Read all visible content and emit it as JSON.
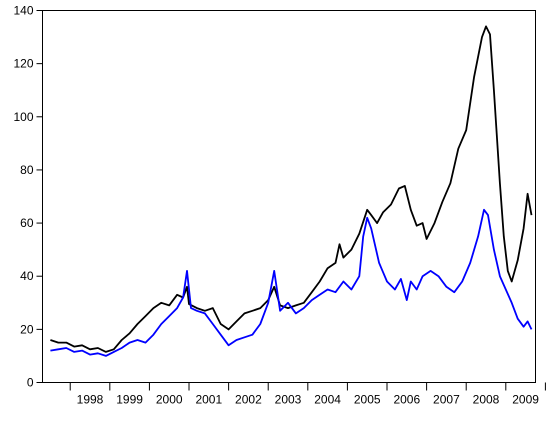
{
  "chart_data": {
    "type": "line",
    "title": "",
    "xlabel": "",
    "ylabel": "",
    "ylim": [
      0,
      140
    ],
    "xlim": [
      1997.3,
      2009.75
    ],
    "y_ticks": [
      "0",
      "20",
      "40",
      "60",
      "80",
      "100",
      "120",
      "140"
    ],
    "x_tick_labels": [
      "1998",
      "1999",
      "2000",
      "2001",
      "2002",
      "2003",
      "2004",
      "2005",
      "2006",
      "2007",
      "2008",
      "2009"
    ],
    "grid": false,
    "legend": "none",
    "series": [
      {
        "color": "#000000",
        "points": [
          [
            1997.5,
            16
          ],
          [
            1997.7,
            15
          ],
          [
            1997.9,
            15
          ],
          [
            1998.1,
            13.5
          ],
          [
            1998.3,
            14
          ],
          [
            1998.5,
            12.5
          ],
          [
            1998.7,
            13
          ],
          [
            1998.9,
            11.5
          ],
          [
            1999.1,
            12.5
          ],
          [
            1999.3,
            16
          ],
          [
            1999.5,
            18.5
          ],
          [
            1999.7,
            22
          ],
          [
            1999.9,
            25
          ],
          [
            2000.1,
            28
          ],
          [
            2000.3,
            30
          ],
          [
            2000.5,
            29
          ],
          [
            2000.7,
            33
          ],
          [
            2000.85,
            32
          ],
          [
            2000.95,
            36
          ],
          [
            2001.0,
            29.5
          ],
          [
            2001.2,
            28
          ],
          [
            2001.4,
            27
          ],
          [
            2001.6,
            28
          ],
          [
            2001.8,
            22
          ],
          [
            2002.0,
            20
          ],
          [
            2002.2,
            23
          ],
          [
            2002.4,
            26
          ],
          [
            2002.6,
            27
          ],
          [
            2002.8,
            28
          ],
          [
            2003.0,
            31
          ],
          [
            2003.15,
            36
          ],
          [
            2003.3,
            29
          ],
          [
            2003.5,
            28
          ],
          [
            2003.7,
            29
          ],
          [
            2003.9,
            30
          ],
          [
            2004.1,
            34
          ],
          [
            2004.3,
            38
          ],
          [
            2004.5,
            43
          ],
          [
            2004.7,
            45
          ],
          [
            2004.8,
            52
          ],
          [
            2004.9,
            47
          ],
          [
            2005.1,
            50
          ],
          [
            2005.3,
            56
          ],
          [
            2005.5,
            65
          ],
          [
            2005.6,
            63
          ],
          [
            2005.75,
            60
          ],
          [
            2005.9,
            64
          ],
          [
            2006.1,
            67
          ],
          [
            2006.3,
            73
          ],
          [
            2006.45,
            74
          ],
          [
            2006.6,
            65
          ],
          [
            2006.75,
            59
          ],
          [
            2006.9,
            60
          ],
          [
            2007.0,
            54
          ],
          [
            2007.2,
            60
          ],
          [
            2007.4,
            68
          ],
          [
            2007.6,
            75
          ],
          [
            2007.8,
            88
          ],
          [
            2008.0,
            95
          ],
          [
            2008.2,
            115
          ],
          [
            2008.4,
            130
          ],
          [
            2008.5,
            134
          ],
          [
            2008.6,
            131
          ],
          [
            2008.7,
            110
          ],
          [
            2008.85,
            75
          ],
          [
            2008.95,
            55
          ],
          [
            2009.05,
            42
          ],
          [
            2009.15,
            38
          ],
          [
            2009.3,
            46
          ],
          [
            2009.45,
            58
          ],
          [
            2009.55,
            71
          ],
          [
            2009.65,
            63
          ]
        ]
      },
      {
        "color": "#0000ff",
        "points": [
          [
            1997.5,
            12
          ],
          [
            1997.7,
            12.5
          ],
          [
            1997.9,
            13
          ],
          [
            1998.1,
            11.5
          ],
          [
            1998.3,
            12
          ],
          [
            1998.5,
            10.5
          ],
          [
            1998.7,
            11
          ],
          [
            1998.9,
            10
          ],
          [
            1999.1,
            11.5
          ],
          [
            1999.3,
            13
          ],
          [
            1999.5,
            15
          ],
          [
            1999.7,
            16
          ],
          [
            1999.9,
            15
          ],
          [
            2000.1,
            18
          ],
          [
            2000.3,
            22
          ],
          [
            2000.5,
            25
          ],
          [
            2000.7,
            28
          ],
          [
            2000.85,
            32
          ],
          [
            2000.95,
            42
          ],
          [
            2001.05,
            28
          ],
          [
            2001.2,
            27
          ],
          [
            2001.4,
            26
          ],
          [
            2001.6,
            22
          ],
          [
            2001.8,
            18
          ],
          [
            2002.0,
            14
          ],
          [
            2002.2,
            16
          ],
          [
            2002.4,
            17
          ],
          [
            2002.6,
            18
          ],
          [
            2002.8,
            22
          ],
          [
            2003.0,
            30
          ],
          [
            2003.15,
            42
          ],
          [
            2003.3,
            27
          ],
          [
            2003.5,
            30
          ],
          [
            2003.7,
            26
          ],
          [
            2003.9,
            28
          ],
          [
            2004.1,
            31
          ],
          [
            2004.3,
            33
          ],
          [
            2004.5,
            35
          ],
          [
            2004.7,
            34
          ],
          [
            2004.9,
            38
          ],
          [
            2005.1,
            35
          ],
          [
            2005.3,
            40
          ],
          [
            2005.4,
            55
          ],
          [
            2005.5,
            62
          ],
          [
            2005.6,
            58
          ],
          [
            2005.8,
            45
          ],
          [
            2006.0,
            38
          ],
          [
            2006.2,
            35
          ],
          [
            2006.35,
            39
          ],
          [
            2006.5,
            31
          ],
          [
            2006.6,
            38
          ],
          [
            2006.75,
            35
          ],
          [
            2006.9,
            40
          ],
          [
            2007.1,
            42
          ],
          [
            2007.3,
            40
          ],
          [
            2007.5,
            36
          ],
          [
            2007.7,
            34
          ],
          [
            2007.9,
            38
          ],
          [
            2008.1,
            45
          ],
          [
            2008.3,
            55
          ],
          [
            2008.45,
            65
          ],
          [
            2008.55,
            63
          ],
          [
            2008.7,
            50
          ],
          [
            2008.85,
            40
          ],
          [
            2009.0,
            35
          ],
          [
            2009.15,
            30
          ],
          [
            2009.3,
            24
          ],
          [
            2009.45,
            21
          ],
          [
            2009.55,
            23
          ],
          [
            2009.65,
            20
          ]
        ]
      }
    ]
  }
}
